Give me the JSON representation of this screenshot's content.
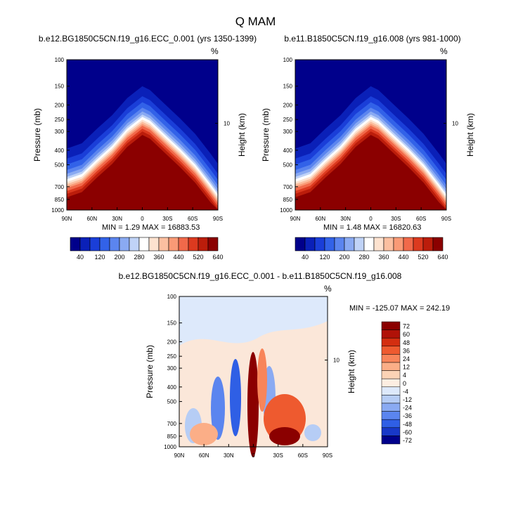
{
  "figure": {
    "title": "Q MAM",
    "unit": "%"
  },
  "colors": {
    "darkred": "#8b0000",
    "navy": "#00008b",
    "panel_sequence_dark_to_light_blue": [
      "#00008b",
      "#0a20b8",
      "#1a3ed8",
      "#3262e8",
      "#5b85ef",
      "#8aaaf2",
      "#c0d3f7",
      "#ffffff",
      "#fde2cf",
      "#fbbfa0",
      "#f99a76",
      "#f1694a",
      "#dc3a1f",
      "#bb1d0b",
      "#8b0000"
    ]
  },
  "panels": [
    {
      "title": "b.e12.BG1850C5CN.f19_g16.ECC_0.001 (yrs 1350-1399)",
      "minmax_text": "MIN =   1.29  MAX = 16883.53"
    },
    {
      "title": "b.e11.B1850C5CN.f19_g16.008 (yrs 981-1000)",
      "minmax_text": "MIN =   1.48  MAX = 16820.63"
    },
    {
      "title": "b.e12.BG1850C5CN.f19_g16.ECC_0.001 - b.e11.B1850C5CN.f19_g16.008",
      "minmax_text": "MIN = -125.07  MAX = 242.19"
    }
  ],
  "chart_data": [
    {
      "type": "heatmap",
      "title": "b.e12.BG1850C5CN.f19_g16.ECC_0.001 (yrs 1350-1399)",
      "xlabel": "",
      "ylabel": "Pressure (mb)",
      "ylabel_right": "Height (km)",
      "x_ticks": [
        "90N",
        "60N",
        "30N",
        "0",
        "30S",
        "60S",
        "90S"
      ],
      "y_ticks": [
        "100",
        "150",
        "200",
        "250",
        "300",
        "400",
        "500",
        "700",
        "850",
        "1000"
      ],
      "y_ticks_right": [
        "10"
      ],
      "ylim": [
        1000,
        100
      ],
      "min": 1.29,
      "max": 16883.53,
      "colorbar_labels": [
        "40",
        "120",
        "200",
        "280",
        "360",
        "440",
        "520",
        "640"
      ]
    },
    {
      "type": "heatmap",
      "title": "b.e11.B1850C5CN.f19_g16.008 (yrs 981-1000)",
      "xlabel": "",
      "ylabel": "Pressure (mb)",
      "ylabel_right": "Height (km)",
      "x_ticks": [
        "90N",
        "60N",
        "30N",
        "0",
        "30S",
        "60S",
        "90S"
      ],
      "y_ticks": [
        "100",
        "150",
        "200",
        "250",
        "300",
        "400",
        "500",
        "700",
        "850",
        "1000"
      ],
      "y_ticks_right": [
        "10"
      ],
      "ylim": [
        1000,
        100
      ],
      "min": 1.48,
      "max": 16820.63,
      "colorbar_labels": [
        "40",
        "120",
        "200",
        "280",
        "360",
        "440",
        "520",
        "640"
      ]
    },
    {
      "type": "heatmap",
      "title": "b.e12.BG1850C5CN.f19_g16.ECC_0.001 - b.e11.B1850C5CN.f19_g16.008",
      "xlabel": "",
      "ylabel": "Pressure (mb)",
      "ylabel_right": "Height (km)",
      "x_ticks": [
        "90N",
        "60N",
        "30N",
        "0",
        "30S",
        "60S",
        "90S"
      ],
      "y_ticks": [
        "100",
        "150",
        "200",
        "250",
        "300",
        "400",
        "500",
        "700",
        "850",
        "1000"
      ],
      "y_ticks_right": [
        "10"
      ],
      "ylim": [
        1000,
        100
      ],
      "min": -125.07,
      "max": 242.19,
      "colorbar_labels": [
        "72",
        "60",
        "48",
        "36",
        "24",
        "12",
        "4",
        "0",
        "-4",
        "-12",
        "-24",
        "-36",
        "-48",
        "-60",
        "-72"
      ]
    }
  ]
}
